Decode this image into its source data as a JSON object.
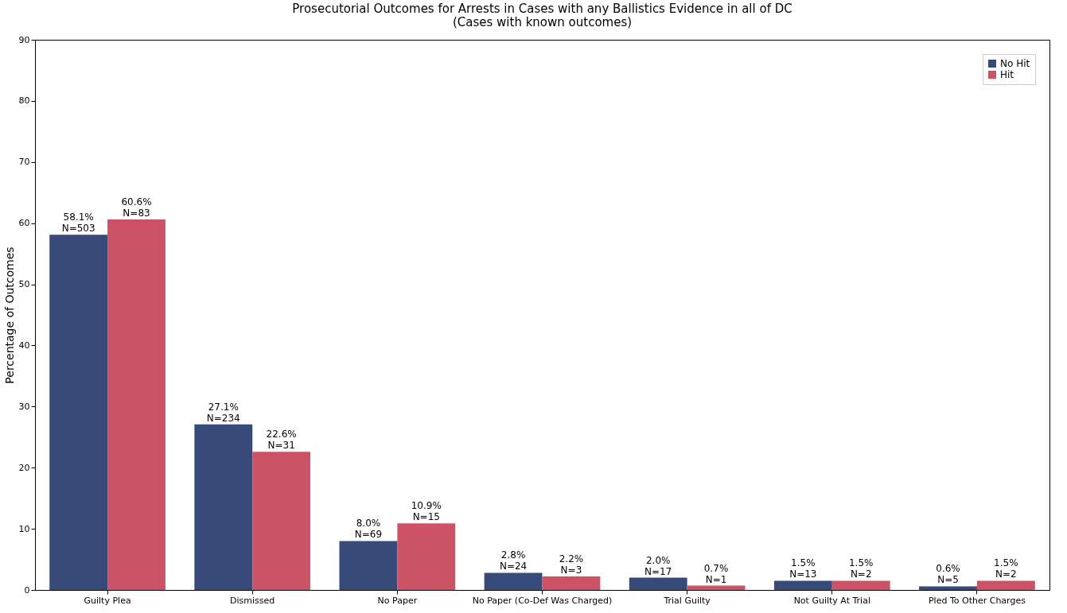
{
  "chart_data": {
    "type": "bar",
    "title": "Prosecutorial Outcomes for Arrests in Cases with any Ballistics Evidence in all of DC",
    "subtitle": "(Cases with known outcomes)",
    "ylabel": "Percentage of Outcomes",
    "categories": [
      "Guilty Plea",
      "Dismissed",
      "No Paper",
      "No Paper (Co-Def Was Charged)",
      "Trial Guilty",
      "Not Guilty At Trial",
      "Pled To Other Charges"
    ],
    "series": [
      {
        "name": "No Hit",
        "color": "#374a7a",
        "values": [
          58.1,
          27.1,
          8.0,
          2.8,
          2.0,
          1.5,
          0.6
        ],
        "value_labels": [
          "58.1%\nN=503",
          "27.1%\nN=234",
          "8.0%\nN=69",
          "2.8%\nN=24",
          "2.0%\nN=17",
          "1.5%\nN=13",
          "0.6%\nN=5"
        ]
      },
      {
        "name": "Hit",
        "color": "#cc5366",
        "values": [
          60.6,
          22.6,
          10.9,
          2.2,
          0.7,
          1.5,
          1.5
        ],
        "value_labels": [
          "60.6%\nN=83",
          "22.6%\nN=31",
          "10.9%\nN=15",
          "2.2%\nN=3",
          "0.7%\nN=1",
          "1.5%\nN=2",
          "1.5%\nN=2"
        ]
      }
    ],
    "ylim": [
      0,
      90
    ],
    "yticks": [
      0,
      10,
      20,
      30,
      40,
      50,
      60,
      70,
      80,
      90
    ],
    "grid": false,
    "legend": "top right"
  }
}
